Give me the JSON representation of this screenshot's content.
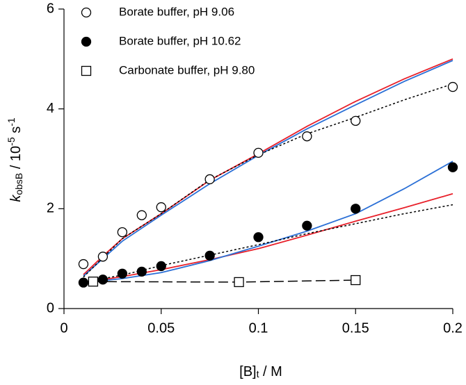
{
  "chart_data": {
    "type": "scatter",
    "xlabel": [
      "[B]",
      "t",
      " / M"
    ],
    "ylabel": [
      "k",
      "obsB",
      " / 10",
      "-5",
      " s",
      "-1"
    ],
    "xlim": [
      0,
      0.2
    ],
    "ylim": [
      0,
      6
    ],
    "xticks": [
      0,
      0.05,
      0.1,
      0.15,
      0.2
    ],
    "yticks": [
      0,
      2,
      4,
      6
    ],
    "legend": "upper left",
    "series": [
      {
        "name": "Borate buffer, pH 9.06",
        "marker": "open-circle",
        "color": "#000000",
        "x": [
          0.01,
          0.02,
          0.03,
          0.04,
          0.05,
          0.075,
          0.1,
          0.125,
          0.15,
          0.2
        ],
        "values": [
          0.89,
          1.04,
          1.53,
          1.87,
          2.03,
          2.59,
          3.12,
          3.45,
          3.76,
          4.44
        ]
      },
      {
        "name": "Borate buffer, pH 10.62",
        "marker": "filled-circle",
        "color": "#000000",
        "x": [
          0.01,
          0.02,
          0.03,
          0.04,
          0.05,
          0.075,
          0.1,
          0.125,
          0.15,
          0.2
        ],
        "values": [
          0.52,
          0.58,
          0.7,
          0.74,
          0.85,
          1.06,
          1.43,
          1.66,
          2.0,
          2.83
        ]
      },
      {
        "name": "Carbonate buffer, pH 9.80",
        "marker": "open-square",
        "color": "#000000",
        "line": "dashed",
        "x": [
          0.015,
          0.09,
          0.15
        ],
        "values": [
          0.54,
          0.53,
          0.57
        ]
      }
    ],
    "fits": [
      {
        "color": "#e8202a",
        "line": "solid",
        "x": [
          0.01,
          0.02,
          0.03,
          0.05,
          0.075,
          0.1,
          0.125,
          0.15,
          0.175,
          0.2
        ],
        "values": [
          0.68,
          1.05,
          1.4,
          1.9,
          2.57,
          3.1,
          3.65,
          4.15,
          4.6,
          5.0
        ]
      },
      {
        "color": "#2a6fd6",
        "line": "solid",
        "x": [
          0.01,
          0.02,
          0.03,
          0.05,
          0.075,
          0.1,
          0.125,
          0.15,
          0.175,
          0.2
        ],
        "values": [
          0.65,
          1.0,
          1.35,
          1.87,
          2.5,
          3.07,
          3.6,
          4.08,
          4.55,
          4.97
        ]
      },
      {
        "color": "#000000",
        "line": "dotted",
        "x": [
          0.01,
          0.02,
          0.03,
          0.05,
          0.075,
          0.1,
          0.125,
          0.15,
          0.175,
          0.2
        ],
        "values": [
          0.63,
          1.02,
          1.4,
          1.9,
          2.58,
          3.08,
          3.5,
          3.83,
          4.18,
          4.5
        ]
      },
      {
        "color": "#e8202a",
        "line": "solid",
        "x": [
          0.01,
          0.02,
          0.03,
          0.05,
          0.075,
          0.1,
          0.125,
          0.15,
          0.175,
          0.2
        ],
        "values": [
          0.52,
          0.58,
          0.64,
          0.78,
          0.98,
          1.2,
          1.47,
          1.75,
          2.02,
          2.3
        ]
      },
      {
        "color": "#2a6fd6",
        "line": "solid",
        "x": [
          0.01,
          0.02,
          0.03,
          0.05,
          0.075,
          0.1,
          0.125,
          0.15,
          0.175,
          0.2
        ],
        "values": [
          0.52,
          0.56,
          0.6,
          0.72,
          0.96,
          1.25,
          1.55,
          1.9,
          2.4,
          2.95
        ]
      },
      {
        "color": "#000000",
        "line": "dotted",
        "x": [
          0.01,
          0.02,
          0.03,
          0.05,
          0.075,
          0.1,
          0.125,
          0.15,
          0.175,
          0.2
        ],
        "values": [
          0.52,
          0.6,
          0.67,
          0.86,
          1.07,
          1.28,
          1.5,
          1.7,
          1.9,
          2.08
        ]
      }
    ]
  }
}
